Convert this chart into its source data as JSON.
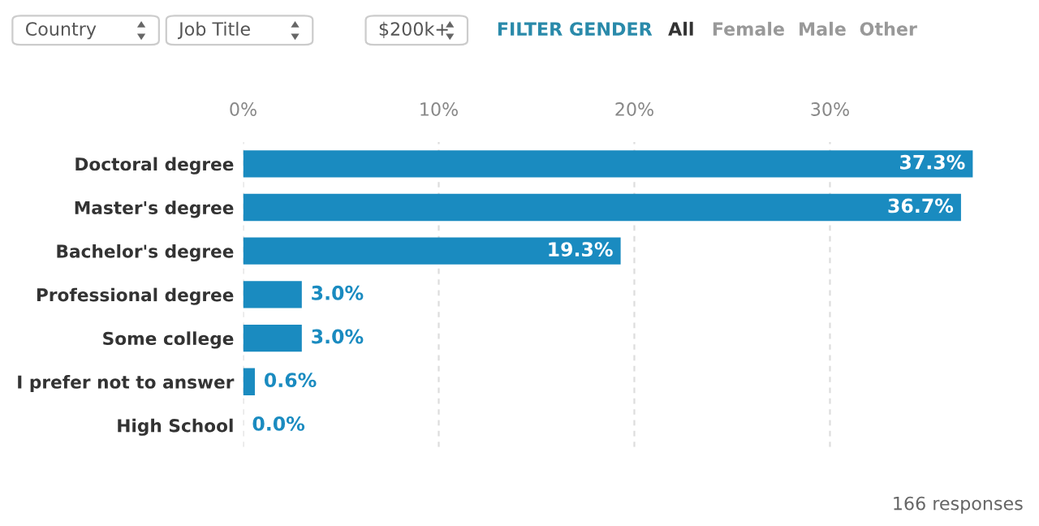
{
  "chart_data": {
    "type": "bar",
    "orientation": "horizontal",
    "categories": [
      "Doctoral degree",
      "Master's degree",
      "Bachelor's degree",
      "Professional degree",
      "Some college",
      "I prefer not to answer",
      "High School"
    ],
    "values": [
      37.3,
      36.7,
      19.3,
      3.0,
      3.0,
      0.6,
      0.0
    ],
    "value_labels": [
      "37.3%",
      "36.7%",
      "19.3%",
      "3.0%",
      "3.0%",
      "0.6%",
      "0.0%"
    ],
    "color": "#1a8bc0",
    "xlim": [
      0,
      37.5
    ],
    "xticks": [
      {
        "value": 0,
        "label": "0%"
      },
      {
        "value": 10,
        "label": "10%"
      },
      {
        "value": 20,
        "label": "20%"
      },
      {
        "value": 30,
        "label": "30%"
      }
    ],
    "grid": "x",
    "annotations": [
      "Country",
      "Job Title",
      "$200k+",
      "FILTER GENDER",
      "All",
      "Female",
      "Male",
      "Other",
      "166 responses"
    ]
  }
}
